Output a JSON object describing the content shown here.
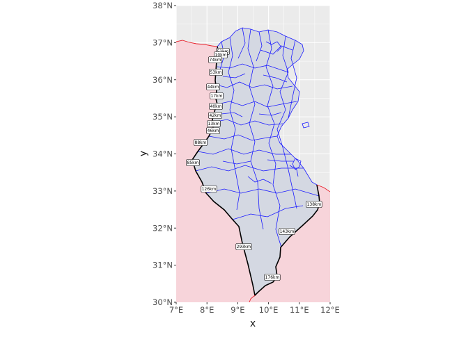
{
  "map": {
    "axes": {
      "x_title": "x",
      "y_title": "y",
      "x_ticks": [
        "7°E",
        "8°E",
        "9°E",
        "10°E",
        "11°E",
        "12°E"
      ],
      "y_ticks": [
        "30°N",
        "31°N",
        "32°N",
        "33°N",
        "34°N",
        "35°N",
        "36°N",
        "37°N",
        "38°N"
      ],
      "xlim": [
        7,
        12
      ],
      "ylim": [
        30,
        38
      ]
    },
    "colors": {
      "panel_background": "#ebebeb",
      "neighbor_fill": "#f7d4da",
      "neighbor_border": "#e8202a",
      "country_fill": "#d4d8e2",
      "admin_lines": "#1a1aff",
      "border_line": "#000000",
      "gridline": "#ffffff"
    },
    "border_segments": [
      {
        "text": "51km"
      },
      {
        "text": "10km"
      },
      {
        "text": "74km"
      },
      {
        "text": "53km"
      },
      {
        "text": "44km"
      },
      {
        "text": "17km"
      },
      {
        "text": "40km"
      },
      {
        "text": "42km"
      },
      {
        "text": "13km"
      },
      {
        "text": "46km"
      },
      {
        "text": "88km"
      },
      {
        "text": "85km"
      },
      {
        "text": "126km"
      },
      {
        "text": "138km"
      },
      {
        "text": "143km"
      },
      {
        "text": "293km"
      },
      {
        "text": "176km"
      }
    ]
  }
}
